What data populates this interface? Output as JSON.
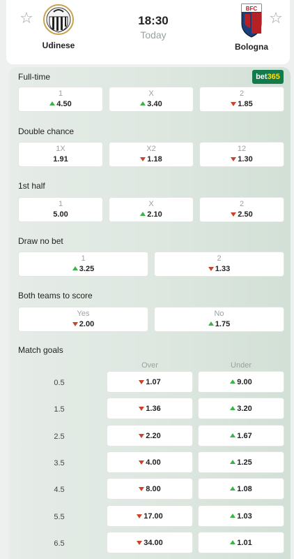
{
  "match": {
    "home": {
      "name": "Udinese",
      "crest_icon": "udinese-crest-icon"
    },
    "away": {
      "name": "Bologna",
      "crest_icon": "bologna-crest-icon",
      "crest_text": "BFC"
    },
    "time": "18:30",
    "day": "Today"
  },
  "bookmaker": {
    "name_part1": "bet",
    "name_part2": "365"
  },
  "markets": {
    "fulltime": {
      "title": "Full-time",
      "options": [
        {
          "label": "1",
          "value": "4.50",
          "trend": "up"
        },
        {
          "label": "X",
          "value": "3.40",
          "trend": "up"
        },
        {
          "label": "2",
          "value": "1.85",
          "trend": "down"
        }
      ]
    },
    "double_chance": {
      "title": "Double chance",
      "options": [
        {
          "label": "1X",
          "value": "1.91",
          "trend": "none"
        },
        {
          "label": "X2",
          "value": "1.18",
          "trend": "down"
        },
        {
          "label": "12",
          "value": "1.30",
          "trend": "down"
        }
      ]
    },
    "first_half": {
      "title": "1st half",
      "options": [
        {
          "label": "1",
          "value": "5.00",
          "trend": "none"
        },
        {
          "label": "X",
          "value": "2.10",
          "trend": "up"
        },
        {
          "label": "2",
          "value": "2.50",
          "trend": "down"
        }
      ]
    },
    "draw_no_bet": {
      "title": "Draw no bet",
      "options": [
        {
          "label": "1",
          "value": "3.25",
          "trend": "up"
        },
        {
          "label": "2",
          "value": "1.33",
          "trend": "down"
        }
      ]
    },
    "btts": {
      "title": "Both teams to score",
      "options": [
        {
          "label": "Yes",
          "value": "2.00",
          "trend": "down"
        },
        {
          "label": "No",
          "value": "1.75",
          "trend": "up"
        }
      ]
    },
    "match_goals": {
      "title": "Match goals",
      "over_label": "Over",
      "under_label": "Under",
      "rows": [
        {
          "line": "0.5",
          "over": "1.07",
          "over_trend": "down",
          "under": "9.00",
          "under_trend": "up"
        },
        {
          "line": "1.5",
          "over": "1.36",
          "over_trend": "down",
          "under": "3.20",
          "under_trend": "up"
        },
        {
          "line": "2.5",
          "over": "2.20",
          "over_trend": "down",
          "under": "1.67",
          "under_trend": "up"
        },
        {
          "line": "3.5",
          "over": "4.00",
          "over_trend": "down",
          "under": "1.25",
          "under_trend": "up"
        },
        {
          "line": "4.5",
          "over": "8.00",
          "over_trend": "down",
          "under": "1.08",
          "under_trend": "up"
        },
        {
          "line": "5.5",
          "over": "17.00",
          "over_trend": "down",
          "under": "1.03",
          "under_trend": "up"
        },
        {
          "line": "6.5",
          "over": "34.00",
          "over_trend": "down",
          "under": "1.01",
          "under_trend": "up"
        }
      ]
    }
  },
  "colors": {
    "trend_up": "#3bb34a",
    "trend_down": "#c8432c",
    "bookmaker_bg": "#127a4b"
  }
}
